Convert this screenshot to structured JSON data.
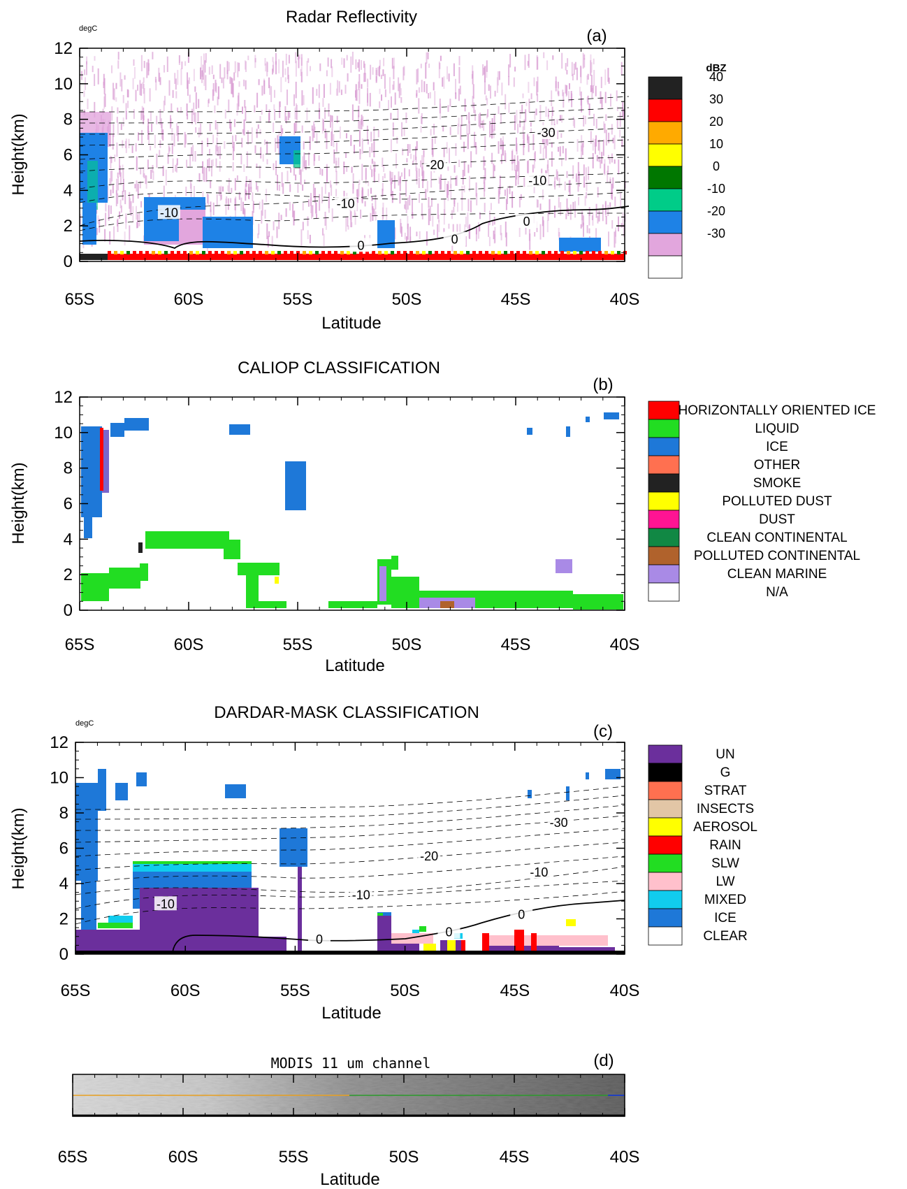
{
  "chart_data": [
    {
      "panel": "(a)",
      "type": "heatmap",
      "title": "Radar Reflectivity",
      "contour_units": "degC",
      "xlabel": "Latitude",
      "ylabel": "Height(km)",
      "x_ticks": [
        "65S",
        "60S",
        "55S",
        "50S",
        "45S",
        "40S"
      ],
      "y_ticks": [
        "0",
        "2",
        "4",
        "6",
        "8",
        "10",
        "12"
      ],
      "xlim": [
        -65,
        -40
      ],
      "ylim": [
        0,
        12
      ],
      "legend_title": "dBZ",
      "legend": [
        {
          "label": "40",
          "color": "#222222"
        },
        {
          "label": "30",
          "color": "#ff0000"
        },
        {
          "label": "20",
          "color": "#ffaa00"
        },
        {
          "label": "10",
          "color": "#ffff00"
        },
        {
          "label": "0",
          "color": "#007700"
        },
        {
          "label": "-10",
          "color": "#00cc88"
        },
        {
          "label": "-20",
          "color": "#1e82e6"
        },
        {
          "label": "-30",
          "color": "#e2a6dd"
        },
        {
          "label": "",
          "color": "#ffffff"
        }
      ],
      "contour_labels": [
        {
          "text": "-30",
          "lat": -43.6,
          "h": 7.2
        },
        {
          "text": "-20",
          "lat": -48.7,
          "h": 5.4
        },
        {
          "text": "-10",
          "lat": -60.9,
          "h": 2.7
        },
        {
          "text": "-10",
          "lat": -52.8,
          "h": 3.2
        },
        {
          "text": "-10",
          "lat": -44.0,
          "h": 4.5
        },
        {
          "text": "0",
          "lat": -52.1,
          "h": 0.85
        },
        {
          "text": "0",
          "lat": -47.8,
          "h": 1.2
        },
        {
          "text": "0",
          "lat": -44.5,
          "h": 2.2
        }
      ]
    },
    {
      "panel": "(b)",
      "type": "heatmap",
      "title": "CALIOP  CLASSIFICATION",
      "xlabel": "Latitude",
      "ylabel": "Height(km)",
      "x_ticks": [
        "65S",
        "60S",
        "55S",
        "50S",
        "45S",
        "40S"
      ],
      "y_ticks": [
        "0",
        "2",
        "4",
        "6",
        "8",
        "10",
        "12"
      ],
      "xlim": [
        -65,
        -40
      ],
      "ylim": [
        0,
        12
      ],
      "legend": [
        {
          "label": "HORIZONTALLY ORIENTED ICE",
          "color": "#ff0000"
        },
        {
          "label": "LIQUID",
          "color": "#22dd22"
        },
        {
          "label": "ICE",
          "color": "#1e78d8"
        },
        {
          "label": "OTHER",
          "color": "#ff7050"
        },
        {
          "label": "SMOKE",
          "color": "#222222"
        },
        {
          "label": "POLLUTED DUST",
          "color": "#ffff00"
        },
        {
          "label": "DUST",
          "color": "#ff1493"
        },
        {
          "label": "CLEAN CONTINENTAL",
          "color": "#118844"
        },
        {
          "label": "POLLUTED CONTINENTAL",
          "color": "#b0622c"
        },
        {
          "label": "CLEAN MARINE",
          "color": "#a98ae6"
        },
        {
          "label": "N/A",
          "color": "#ffffff"
        }
      ]
    },
    {
      "panel": "(c)",
      "type": "heatmap",
      "title": "DARDAR-MASK CLASSIFICATION",
      "contour_units": "degC",
      "xlabel": "Latitude",
      "ylabel": "Height(km)",
      "x_ticks": [
        "65S",
        "60S",
        "55S",
        "50S",
        "45S",
        "40S"
      ],
      "y_ticks": [
        "0",
        "2",
        "4",
        "6",
        "8",
        "10",
        "12"
      ],
      "xlim": [
        -65,
        -40
      ],
      "ylim": [
        0,
        12
      ],
      "legend": [
        {
          "label": "UN",
          "color": "#6b2f9c"
        },
        {
          "label": "G",
          "color": "#000000"
        },
        {
          "label": "STRAT",
          "color": "#ff7050"
        },
        {
          "label": "INSECTS",
          "color": "#e2c6a6"
        },
        {
          "label": "AEROSOL",
          "color": "#ffff00"
        },
        {
          "label": "RAIN",
          "color": "#ff0000"
        },
        {
          "label": "SLW",
          "color": "#22dd22"
        },
        {
          "label": "LW",
          "color": "#ffc0cc"
        },
        {
          "label": "MIXED",
          "color": "#11ccee"
        },
        {
          "label": "ICE",
          "color": "#1e78d8"
        },
        {
          "label": "CLEAR",
          "color": "#ffffff"
        }
      ],
      "contour_labels": [
        {
          "text": "-30",
          "lat": -43.0,
          "h": 7.4
        },
        {
          "text": "-20",
          "lat": -48.9,
          "h": 5.5
        },
        {
          "text": "-10",
          "lat": -60.9,
          "h": 2.8
        },
        {
          "text": "-10",
          "lat": -52.0,
          "h": 3.3
        },
        {
          "text": "-10",
          "lat": -43.9,
          "h": 4.6
        },
        {
          "text": "0",
          "lat": -53.9,
          "h": 0.8
        },
        {
          "text": "0",
          "lat": -48.0,
          "h": 1.2
        },
        {
          "text": "0",
          "lat": -44.7,
          "h": 2.2
        }
      ]
    },
    {
      "panel": "(d)",
      "type": "image",
      "title": "MODIS 11 um channel",
      "xlabel": "Latitude",
      "x_ticks": [
        "65S",
        "60S",
        "55S",
        "50S",
        "45S",
        "40S"
      ],
      "xlim": [
        -65,
        -40
      ]
    }
  ]
}
